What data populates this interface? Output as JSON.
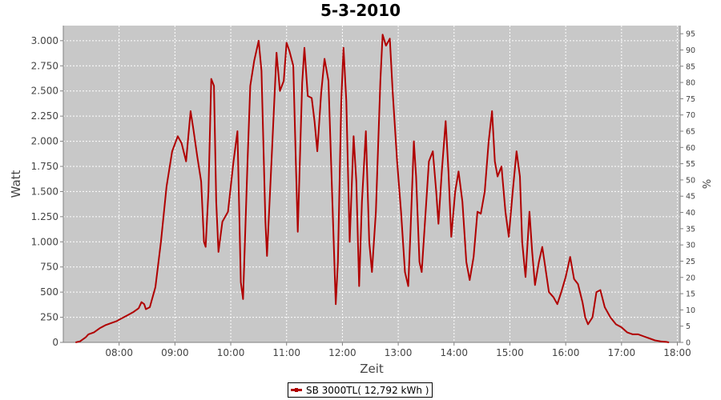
{
  "chart_data": {
    "type": "line",
    "title": "5-3-2010",
    "xlabel": "Zeit",
    "ylabel": "Watt",
    "y2label": "%",
    "x_unit": "hour",
    "xlim": [
      7.0,
      18.05
    ],
    "ylim": [
      0,
      3150
    ],
    "y2lim": [
      0,
      97.5
    ],
    "x_tick_values": [
      8,
      9,
      10,
      11,
      12,
      13,
      14,
      15,
      16,
      17,
      18
    ],
    "x_tick_labels": [
      "08:00",
      "09:00",
      "10:00",
      "11:00",
      "12:00",
      "13:00",
      "14:00",
      "15:00",
      "16:00",
      "17:00",
      "18:00"
    ],
    "y_tick_values": [
      0,
      250,
      500,
      750,
      1000,
      1250,
      1500,
      1750,
      2000,
      2250,
      2500,
      2750,
      3000
    ],
    "y_tick_labels": [
      "0",
      "250",
      "500",
      "750",
      "1.000",
      "1.250",
      "1.500",
      "1.750",
      "2.000",
      "2.250",
      "2.500",
      "2.750",
      "3.000"
    ],
    "y2_tick_values": [
      0,
      5,
      10,
      15,
      20,
      25,
      30,
      35,
      40,
      45,
      50,
      55,
      60,
      65,
      70,
      75,
      80,
      85,
      90,
      95
    ],
    "y2_tick_labels": [
      "0",
      "5",
      "10",
      "15",
      "20",
      "25",
      "30",
      "35",
      "40",
      "45",
      "50",
      "55",
      "60",
      "65",
      "70",
      "75",
      "80",
      "85",
      "90",
      "95"
    ],
    "grid": true,
    "legend_position": "bottom-center",
    "background_color": "#c8c8c8",
    "series": [
      {
        "name": "SB 3000TL",
        "color": "#b00000",
        "points": [
          [
            7.22,
            0
          ],
          [
            7.3,
            10
          ],
          [
            7.4,
            50
          ],
          [
            7.45,
            80
          ],
          [
            7.55,
            100
          ],
          [
            7.65,
            140
          ],
          [
            7.75,
            170
          ],
          [
            7.85,
            190
          ],
          [
            7.95,
            210
          ],
          [
            8.05,
            240
          ],
          [
            8.15,
            270
          ],
          [
            8.25,
            300
          ],
          [
            8.35,
            340
          ],
          [
            8.4,
            400
          ],
          [
            8.45,
            380
          ],
          [
            8.48,
            330
          ],
          [
            8.55,
            350
          ],
          [
            8.65,
            550
          ],
          [
            8.75,
            1000
          ],
          [
            8.85,
            1550
          ],
          [
            8.95,
            1900
          ],
          [
            9.05,
            2050
          ],
          [
            9.12,
            1980
          ],
          [
            9.2,
            1800
          ],
          [
            9.28,
            2300
          ],
          [
            9.33,
            2120
          ],
          [
            9.4,
            1850
          ],
          [
            9.47,
            1600
          ],
          [
            9.52,
            1000
          ],
          [
            9.55,
            950
          ],
          [
            9.6,
            1500
          ],
          [
            9.65,
            2620
          ],
          [
            9.7,
            2550
          ],
          [
            9.74,
            1400
          ],
          [
            9.78,
            900
          ],
          [
            9.85,
            1200
          ],
          [
            9.95,
            1300
          ],
          [
            10.05,
            1800
          ],
          [
            10.12,
            2100
          ],
          [
            10.18,
            600
          ],
          [
            10.22,
            430
          ],
          [
            10.3,
            1800
          ],
          [
            10.35,
            2550
          ],
          [
            10.42,
            2800
          ],
          [
            10.5,
            3000
          ],
          [
            10.55,
            2700
          ],
          [
            10.62,
            1200
          ],
          [
            10.65,
            860
          ],
          [
            10.73,
            1800
          ],
          [
            10.82,
            2880
          ],
          [
            10.88,
            2500
          ],
          [
            10.95,
            2600
          ],
          [
            11.0,
            2980
          ],
          [
            11.05,
            2900
          ],
          [
            11.12,
            2750
          ],
          [
            11.17,
            1700
          ],
          [
            11.2,
            1100
          ],
          [
            11.28,
            2580
          ],
          [
            11.32,
            2930
          ],
          [
            11.38,
            2450
          ],
          [
            11.45,
            2430
          ],
          [
            11.5,
            2200
          ],
          [
            11.55,
            1900
          ],
          [
            11.62,
            2480
          ],
          [
            11.68,
            2820
          ],
          [
            11.75,
            2600
          ],
          [
            11.82,
            1400
          ],
          [
            11.88,
            380
          ],
          [
            11.92,
            800
          ],
          [
            11.98,
            2400
          ],
          [
            12.02,
            2930
          ],
          [
            12.07,
            2400
          ],
          [
            12.13,
            1000
          ],
          [
            12.2,
            2050
          ],
          [
            12.25,
            1600
          ],
          [
            12.3,
            560
          ],
          [
            12.35,
            1400
          ],
          [
            12.42,
            2100
          ],
          [
            12.48,
            1000
          ],
          [
            12.53,
            700
          ],
          [
            12.6,
            1300
          ],
          [
            12.68,
            2600
          ],
          [
            12.72,
            3060
          ],
          [
            12.78,
            2950
          ],
          [
            12.85,
            3020
          ],
          [
            12.9,
            2500
          ],
          [
            12.98,
            1800
          ],
          [
            13.05,
            1300
          ],
          [
            13.12,
            700
          ],
          [
            13.18,
            560
          ],
          [
            13.22,
            1100
          ],
          [
            13.28,
            2000
          ],
          [
            13.32,
            1650
          ],
          [
            13.38,
            800
          ],
          [
            13.42,
            700
          ],
          [
            13.48,
            1200
          ],
          [
            13.55,
            1800
          ],
          [
            13.62,
            1900
          ],
          [
            13.68,
            1500
          ],
          [
            13.72,
            1180
          ],
          [
            13.78,
            1700
          ],
          [
            13.85,
            2200
          ],
          [
            13.9,
            1700
          ],
          [
            13.95,
            1050
          ],
          [
            14.02,
            1500
          ],
          [
            14.08,
            1700
          ],
          [
            14.15,
            1400
          ],
          [
            14.22,
            800
          ],
          [
            14.28,
            620
          ],
          [
            14.35,
            850
          ],
          [
            14.42,
            1300
          ],
          [
            14.48,
            1280
          ],
          [
            14.55,
            1500
          ],
          [
            14.62,
            2000
          ],
          [
            14.68,
            2300
          ],
          [
            14.73,
            1800
          ],
          [
            14.78,
            1650
          ],
          [
            14.85,
            1750
          ],
          [
            14.92,
            1300
          ],
          [
            14.98,
            1050
          ],
          [
            15.05,
            1500
          ],
          [
            15.12,
            1900
          ],
          [
            15.18,
            1650
          ],
          [
            15.22,
            1000
          ],
          [
            15.28,
            650
          ],
          [
            15.35,
            1300
          ],
          [
            15.4,
            900
          ],
          [
            15.45,
            570
          ],
          [
            15.52,
            800
          ],
          [
            15.58,
            950
          ],
          [
            15.62,
            800
          ],
          [
            15.7,
            500
          ],
          [
            15.78,
            450
          ],
          [
            15.85,
            380
          ],
          [
            15.92,
            500
          ],
          [
            16.0,
            650
          ],
          [
            16.08,
            850
          ],
          [
            16.15,
            630
          ],
          [
            16.22,
            580
          ],
          [
            16.3,
            400
          ],
          [
            16.35,
            250
          ],
          [
            16.4,
            180
          ],
          [
            16.48,
            250
          ],
          [
            16.55,
            500
          ],
          [
            16.62,
            520
          ],
          [
            16.7,
            350
          ],
          [
            16.8,
            250
          ],
          [
            16.9,
            180
          ],
          [
            17.0,
            150
          ],
          [
            17.1,
            100
          ],
          [
            17.2,
            80
          ],
          [
            17.3,
            80
          ],
          [
            17.4,
            60
          ],
          [
            17.5,
            40
          ],
          [
            17.6,
            20
          ],
          [
            17.7,
            10
          ],
          [
            17.8,
            5
          ],
          [
            17.85,
            0
          ]
        ]
      }
    ]
  },
  "legend": {
    "label": "SB 3000TL( 12,792 kWh )"
  }
}
